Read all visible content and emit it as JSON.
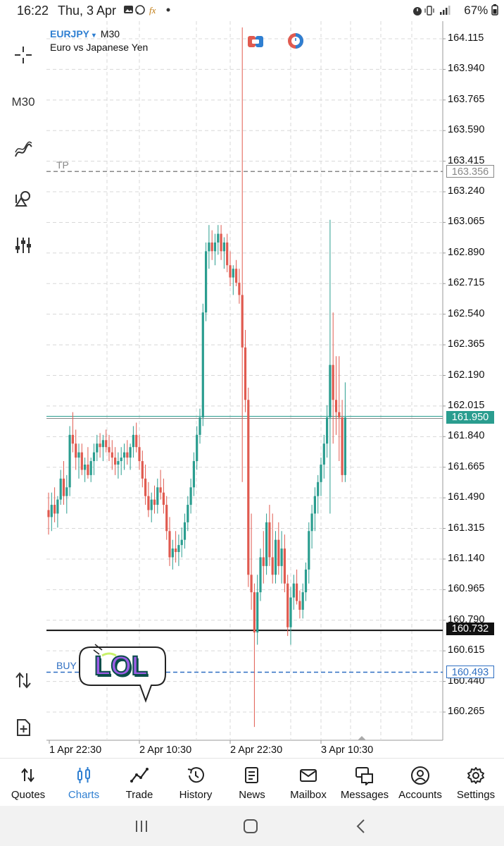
{
  "status_bar": {
    "time": "16:22",
    "date": "Thu, 3 Apr",
    "battery": "67%",
    "icons": [
      "gallery-icon",
      "whatsapp-icon",
      "fx-icon",
      "dot-icon",
      "alarm-icon",
      "vibrate-icon",
      "signal-icon"
    ]
  },
  "left_toolbar": {
    "timeframe": "M30",
    "tools": [
      "crosshair-icon",
      "timeframe-button",
      "indicators-icon",
      "objects-icon",
      "settings-sliders-icon",
      "trade-arrows-icon",
      "new-order-icon"
    ]
  },
  "chart_header": {
    "symbol": "EURJPY",
    "dropdown_glyph": "▾",
    "timeframe": "M30",
    "description": "Euro vs Japanese Yen"
  },
  "chart_data": {
    "type": "candlestick",
    "symbol": "EURJPY",
    "timeframe": "M30",
    "y_ticks": [
      "164.115",
      "163.940",
      "163.765",
      "163.590",
      "163.415",
      "163.240",
      "163.065",
      "162.890",
      "162.715",
      "162.540",
      "162.365",
      "162.190",
      "162.015",
      "161.840",
      "161.665",
      "161.490",
      "161.315",
      "161.140",
      "160.965",
      "160.790",
      "160.615",
      "160.440",
      "160.265"
    ],
    "x_ticks": [
      "1 Apr 22:30",
      "2 Apr 10:30",
      "2 Apr 22:30",
      "3 Apr 10:30"
    ],
    "ylim": [
      160.16,
      164.18
    ],
    "grid": true,
    "up_color": "#2a9d8f",
    "down_color": "#e05a4f",
    "levels": {
      "current_price": "161.950",
      "tp": {
        "label": "TP",
        "price": "163.356"
      },
      "horizontal_line": "160.732",
      "buy": {
        "label": "BUY",
        "price": "160.493"
      }
    },
    "candles": [
      [
        161.42,
        161.52,
        161.28,
        161.38
      ],
      [
        161.38,
        161.52,
        161.3,
        161.45
      ],
      [
        161.45,
        161.55,
        161.35,
        161.4
      ],
      [
        161.4,
        161.5,
        161.32,
        161.48
      ],
      [
        161.48,
        161.65,
        161.45,
        161.6
      ],
      [
        161.6,
        161.7,
        161.45,
        161.5
      ],
      [
        161.5,
        161.62,
        161.4,
        161.55
      ],
      [
        161.55,
        161.9,
        161.5,
        161.85
      ],
      [
        161.85,
        161.98,
        161.75,
        161.8
      ],
      [
        161.8,
        161.88,
        161.65,
        161.72
      ],
      [
        161.72,
        161.8,
        161.6,
        161.75
      ],
      [
        161.75,
        161.8,
        161.62,
        161.65
      ],
      [
        161.65,
        161.72,
        161.58,
        161.68
      ],
      [
        161.68,
        161.78,
        161.6,
        161.62
      ],
      [
        161.62,
        161.72,
        161.58,
        161.7
      ],
      [
        161.7,
        161.8,
        161.62,
        161.75
      ],
      [
        161.75,
        161.85,
        161.7,
        161.8
      ],
      [
        161.8,
        161.86,
        161.72,
        161.78
      ],
      [
        161.78,
        161.85,
        161.7,
        161.82
      ],
      [
        161.82,
        161.88,
        161.75,
        161.78
      ],
      [
        161.78,
        161.85,
        161.7,
        161.75
      ],
      [
        161.75,
        161.82,
        161.65,
        161.72
      ],
      [
        161.72,
        161.78,
        161.62,
        161.68
      ],
      [
        161.68,
        161.75,
        161.6,
        161.7
      ],
      [
        161.7,
        161.78,
        161.62,
        161.72
      ],
      [
        161.72,
        161.8,
        161.65,
        161.75
      ],
      [
        161.75,
        161.82,
        161.68,
        161.72
      ],
      [
        161.72,
        161.8,
        161.65,
        161.78
      ],
      [
        161.78,
        161.9,
        161.72,
        161.85
      ],
      [
        161.85,
        161.92,
        161.75,
        161.78
      ],
      [
        161.78,
        161.85,
        161.65,
        161.7
      ],
      [
        161.7,
        161.76,
        161.55,
        161.6
      ],
      [
        161.6,
        161.68,
        161.45,
        161.5
      ],
      [
        161.5,
        161.58,
        161.38,
        161.42
      ],
      [
        161.42,
        161.52,
        161.35,
        161.48
      ],
      [
        161.48,
        161.56,
        161.4,
        161.45
      ],
      [
        161.45,
        161.6,
        161.4,
        161.55
      ],
      [
        161.55,
        161.65,
        161.48,
        161.52
      ],
      [
        161.52,
        161.6,
        161.4,
        161.45
      ],
      [
        161.45,
        161.5,
        161.25,
        161.3
      ],
      [
        161.3,
        161.38,
        161.1,
        161.15
      ],
      [
        161.15,
        161.25,
        161.08,
        161.2
      ],
      [
        161.2,
        161.3,
        161.12,
        161.18
      ],
      [
        161.18,
        161.28,
        161.1,
        161.22
      ],
      [
        161.22,
        161.32,
        161.15,
        161.25
      ],
      [
        161.25,
        161.4,
        161.2,
        161.35
      ],
      [
        161.35,
        161.5,
        161.3,
        161.45
      ],
      [
        161.45,
        161.6,
        161.4,
        161.55
      ],
      [
        161.55,
        161.75,
        161.5,
        161.7
      ],
      [
        161.7,
        161.9,
        161.65,
        161.85
      ],
      [
        161.85,
        162.0,
        161.8,
        161.95
      ],
      [
        161.95,
        162.6,
        161.9,
        162.55
      ],
      [
        162.55,
        162.95,
        162.5,
        162.9
      ],
      [
        162.9,
        163.05,
        162.8,
        162.95
      ],
      [
        162.95,
        163.02,
        162.85,
        162.9
      ],
      [
        162.9,
        163.0,
        162.82,
        162.95
      ],
      [
        162.95,
        163.05,
        162.88,
        163.0
      ],
      [
        163.0,
        163.05,
        162.85,
        162.9
      ],
      [
        162.9,
        162.98,
        162.8,
        162.95
      ],
      [
        162.95,
        163.0,
        162.78,
        162.82
      ],
      [
        162.82,
        162.9,
        162.7,
        162.75
      ],
      [
        162.75,
        162.82,
        162.65,
        162.8
      ],
      [
        162.8,
        162.85,
        162.7,
        162.72
      ],
      [
        162.72,
        162.8,
        162.6,
        162.65
      ],
      [
        162.65,
        164.18,
        161.58,
        162.35
      ],
      [
        162.35,
        162.45,
        161.98,
        162.05
      ],
      [
        162.05,
        162.12,
        160.98,
        161.05
      ],
      [
        161.05,
        161.4,
        160.85,
        160.95
      ],
      [
        160.95,
        161.0,
        160.18,
        160.72
      ],
      [
        160.72,
        161.05,
        160.65,
        160.95
      ],
      [
        160.95,
        161.2,
        160.9,
        161.15
      ],
      [
        161.15,
        161.3,
        161.0,
        161.1
      ],
      [
        161.1,
        161.4,
        161.05,
        161.35
      ],
      [
        161.35,
        161.45,
        161.1,
        161.15
      ],
      [
        161.15,
        161.4,
        161.0,
        161.05
      ],
      [
        161.05,
        161.3,
        161.0,
        161.25
      ],
      [
        161.25,
        161.35,
        161.05,
        161.1
      ],
      [
        161.1,
        161.3,
        161.0,
        161.2
      ],
      [
        161.2,
        161.28,
        160.95,
        161.0
      ],
      [
        161.0,
        161.05,
        160.7,
        160.75
      ],
      [
        160.75,
        160.98,
        160.65,
        160.92
      ],
      [
        160.92,
        161.05,
        160.85,
        161.0
      ],
      [
        161.0,
        161.08,
        160.88,
        160.9
      ],
      [
        160.9,
        160.96,
        160.8,
        160.85
      ],
      [
        160.85,
        161.0,
        160.8,
        160.95
      ],
      [
        160.95,
        161.12,
        160.9,
        161.08
      ],
      [
        161.08,
        161.35,
        161.0,
        161.3
      ],
      [
        161.3,
        161.45,
        161.2,
        161.4
      ],
      [
        161.4,
        161.55,
        161.3,
        161.5
      ],
      [
        161.5,
        161.62,
        161.4,
        161.58
      ],
      [
        161.58,
        161.72,
        161.5,
        161.68
      ],
      [
        161.68,
        161.85,
        161.6,
        161.8
      ],
      [
        161.8,
        162.02,
        161.72,
        161.95
      ],
      [
        161.95,
        163.08,
        161.4,
        162.25
      ],
      [
        162.25,
        162.55,
        161.8,
        162.05
      ],
      [
        162.05,
        162.3,
        161.85,
        161.98
      ],
      [
        161.98,
        162.3,
        161.7,
        161.95
      ],
      [
        161.95,
        162.05,
        161.58,
        161.62
      ],
      [
        161.62,
        162.15,
        161.58,
        161.95
      ]
    ]
  },
  "bottom_nav": {
    "items": [
      {
        "label": "Quotes",
        "icon": "quotes-arrows-icon",
        "active": false
      },
      {
        "label": "Charts",
        "icon": "charts-candles-icon",
        "active": true
      },
      {
        "label": "Trade",
        "icon": "trade-line-icon",
        "active": false
      },
      {
        "label": "History",
        "icon": "history-clock-icon",
        "active": false
      },
      {
        "label": "News",
        "icon": "news-list-icon",
        "active": false
      },
      {
        "label": "Mailbox",
        "icon": "mailbox-envelope-icon",
        "active": false
      },
      {
        "label": "Messages",
        "icon": "messages-bubbles-icon",
        "active": false
      },
      {
        "label": "Accounts",
        "icon": "accounts-person-icon",
        "active": false
      },
      {
        "label": "Settings",
        "icon": "settings-gear-icon",
        "active": false
      }
    ]
  },
  "sticker": {
    "text": "LOL",
    "fill": "#9b5de5",
    "outline": "#0a4d4a",
    "highlight": "#c8f16a"
  }
}
